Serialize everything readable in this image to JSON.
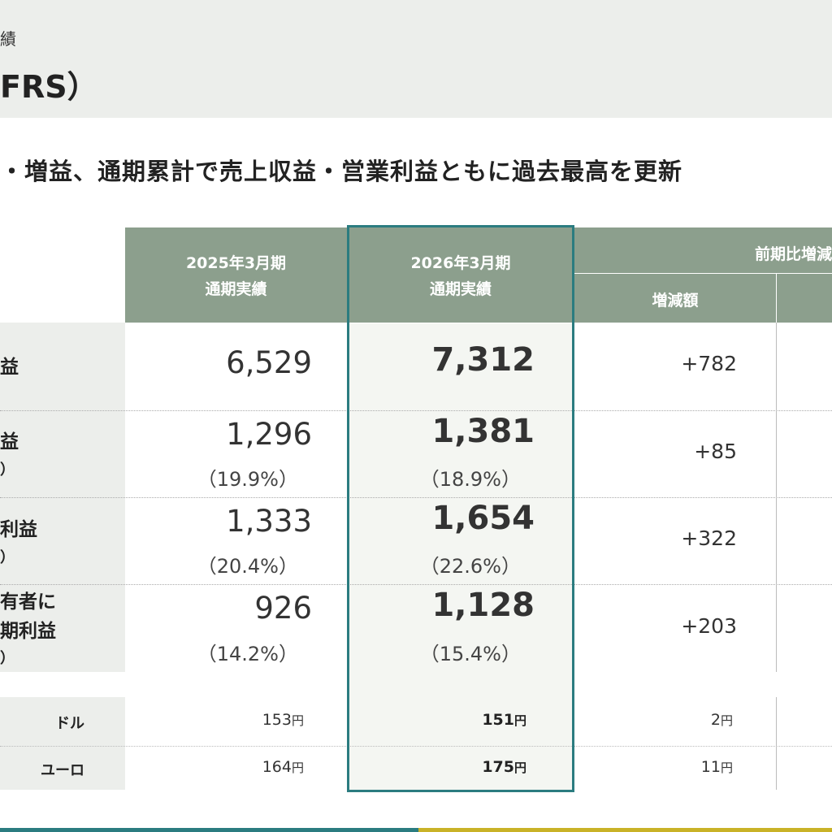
{
  "header": {
    "subtitle": "績",
    "title": "FRS）"
  },
  "headline": "・増益、通期累計で売上収益・営業利益ともに過去最高を更新",
  "table": {
    "columns": {
      "prev": {
        "line1": "2025年3月期",
        "line2": "通期実績"
      },
      "cur": {
        "line1": "2026年3月期",
        "line2": "通期実績"
      },
      "comparison": "前期比増減",
      "diff": "増減額"
    },
    "rows": [
      {
        "label1": "益",
        "label2": "",
        "label3": "",
        "prev": "6,529",
        "prev_pct": "",
        "cur": "7,312",
        "cur_pct": "",
        "diff": "+782"
      },
      {
        "label1": "益",
        "label2": "）",
        "label3": "",
        "prev": "1,296",
        "prev_pct": "（19.9%）",
        "cur": "1,381",
        "cur_pct": "（18.9%）",
        "diff": "+85"
      },
      {
        "label1": "利益",
        "label2": "）",
        "label3": "",
        "prev": "1,333",
        "prev_pct": "（20.4%）",
        "cur": "1,654",
        "cur_pct": "（22.6%）",
        "diff": "+322"
      },
      {
        "label1": "有者に",
        "label2": "期利益",
        "label3": "）",
        "prev": "926",
        "prev_pct": "（14.2%）",
        "cur": "1,128",
        "cur_pct": "（15.4%）",
        "diff": "+203"
      }
    ],
    "fx": [
      {
        "label": "ドル",
        "prev": "153",
        "cur": "151",
        "diff": "2",
        "unit": "円"
      },
      {
        "label": "ユーロ",
        "prev": "164",
        "cur": "175",
        "diff": "11",
        "unit": "円"
      }
    ]
  },
  "colors": {
    "header_band": "#eceeeb",
    "table_header": "#8c9f8d",
    "highlight_frame": "#2b7c80",
    "bottom_teal": "#2b7c80",
    "bottom_gold": "#c9b227"
  }
}
